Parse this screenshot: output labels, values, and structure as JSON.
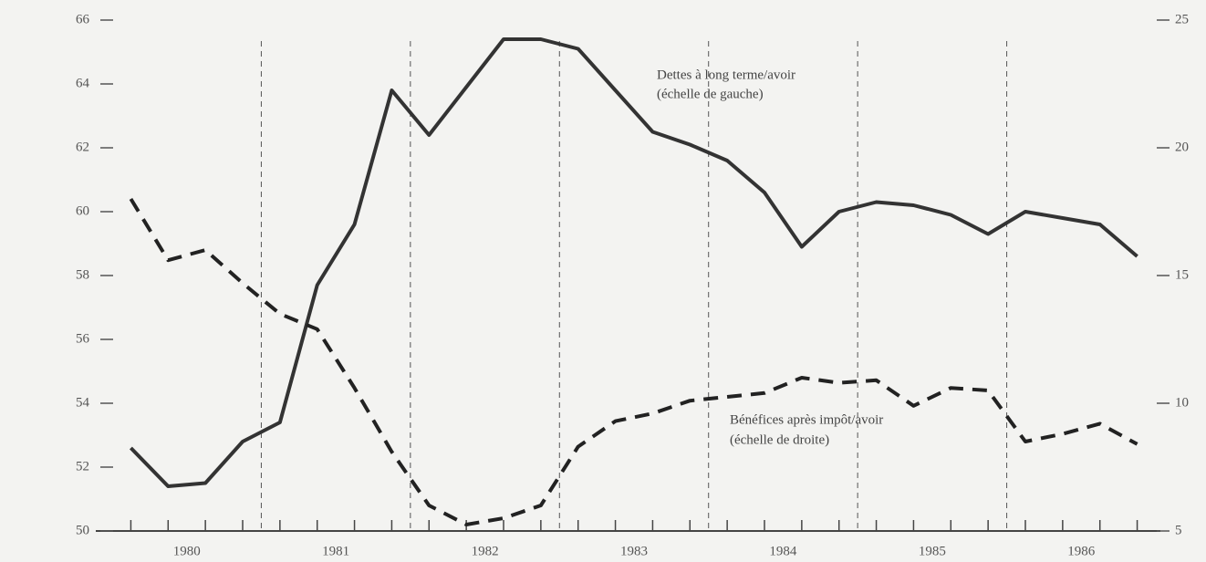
{
  "chart_data": {
    "type": "line",
    "x": [
      1980.125,
      1980.375,
      1980.625,
      1980.875,
      1981.125,
      1981.375,
      1981.625,
      1981.875,
      1982.125,
      1982.375,
      1982.625,
      1982.875,
      1983.125,
      1983.375,
      1983.625,
      1983.875,
      1984.125,
      1984.375,
      1984.625,
      1984.875,
      1985.125,
      1985.375,
      1985.625,
      1985.875,
      1986.125,
      1986.375,
      1986.625,
      1986.875
    ],
    "xlim": [
      1980,
      1987
    ],
    "xticks": [
      {
        "value": 1980.5,
        "label": "1980"
      },
      {
        "value": 1981.5,
        "label": "1981"
      },
      {
        "value": 1982.5,
        "label": "1982"
      },
      {
        "value": 1983.5,
        "label": "1983"
      },
      {
        "value": 1984.5,
        "label": "1984"
      },
      {
        "value": 1985.5,
        "label": "1985"
      },
      {
        "value": 1986.5,
        "label": "1986"
      }
    ],
    "vlines": [
      1981,
      1982,
      1983,
      1984,
      1985,
      1986
    ],
    "ylim": [
      50,
      66
    ],
    "yticks": [
      50,
      52,
      54,
      56,
      58,
      60,
      62,
      64,
      66
    ],
    "y2lim": [
      5,
      25
    ],
    "y2ticks": [
      5,
      10,
      15,
      20,
      25
    ],
    "series": [
      {
        "name": "Dettes à long terme/avoir",
        "scale_note": "(échelle de gauche)",
        "color": "#333333",
        "style": "solid",
        "values": [
          52.6,
          51.4,
          51.5,
          52.8,
          53.4,
          57.7,
          59.6,
          63.8,
          62.4,
          63.9,
          65.4,
          65.4,
          65.1,
          63.8,
          62.5,
          62.1,
          61.6,
          60.6,
          58.9,
          60.0,
          60.3,
          60.2,
          59.9,
          59.3,
          60.0,
          59.8,
          59.6,
          58.6
        ]
      },
      {
        "name": "Bénéfices après impôt/avoir",
        "scale_note": "(échelle de droite)",
        "color": "#222222",
        "style": "dashed",
        "axis": "y2",
        "values": [
          18.0,
          15.6,
          16.0,
          14.7,
          13.5,
          12.9,
          10.6,
          8.1,
          6.0,
          5.25,
          5.5,
          6.0,
          8.3,
          9.3,
          9.6,
          10.1,
          10.25,
          10.4,
          11.0,
          10.8,
          10.9,
          9.9,
          10.6,
          10.5,
          8.5,
          8.8,
          9.2,
          8.4
        ]
      }
    ]
  }
}
